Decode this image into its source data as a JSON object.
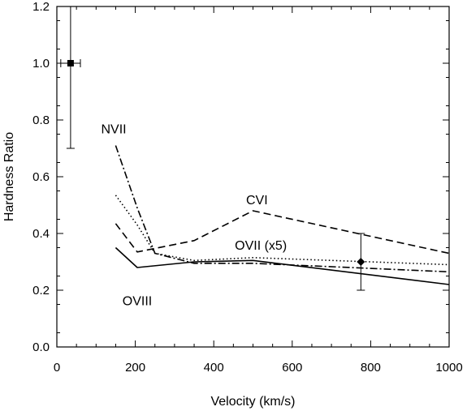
{
  "chart_data": {
    "type": "line",
    "title": "",
    "xlabel": "Velocity (km/s)",
    "ylabel": "Hardness Ratio",
    "xlim": [
      0,
      1000
    ],
    "ylim": [
      0.0,
      1.2
    ],
    "xticks": [
      "0",
      "200",
      "400",
      "600",
      "800",
      "1000"
    ],
    "yticks": [
      "0.0",
      "0.2",
      "0.4",
      "0.6",
      "0.8",
      "1.0",
      "1.2"
    ],
    "grid": false,
    "series": [
      {
        "name": "OVIII",
        "style": "solid",
        "x": [
          150,
          205,
          350,
          500,
          1000
        ],
        "y": [
          0.35,
          0.28,
          0.3,
          0.305,
          0.22
        ]
      },
      {
        "name": "CVI",
        "style": "dashed",
        "x": [
          150,
          205,
          350,
          500,
          1000
        ],
        "y": [
          0.435,
          0.335,
          0.375,
          0.48,
          0.33
        ]
      },
      {
        "name": "OVII (x5)",
        "style": "dotted",
        "x": [
          150,
          205,
          250,
          350,
          500,
          1000
        ],
        "y": [
          0.535,
          0.43,
          0.33,
          0.305,
          0.315,
          0.29
        ]
      },
      {
        "name": "NVII",
        "style": "dash-dot",
        "x": [
          150,
          205,
          250,
          350,
          500,
          1000
        ],
        "y": [
          0.71,
          0.49,
          0.33,
          0.295,
          0.295,
          0.265
        ]
      }
    ],
    "points": [
      {
        "x": 35,
        "y": 1.0,
        "xerr": 25,
        "yerr_low": 0.3,
        "yerr_high": 0.2,
        "marker": "square"
      },
      {
        "x": 775,
        "y": 0.3,
        "xerr": 0,
        "yerr_low": 0.1,
        "yerr_high": 0.1,
        "marker": "diamond"
      }
    ],
    "curve_labels": [
      {
        "text": "NVII",
        "x": 145,
        "y": 0.77
      },
      {
        "text": "CVI",
        "x": 510,
        "y": 0.52
      },
      {
        "text": "OVII (x5)",
        "x": 520,
        "y": 0.36
      },
      {
        "text": "OVIII",
        "x": 205,
        "y": 0.165
      }
    ]
  }
}
